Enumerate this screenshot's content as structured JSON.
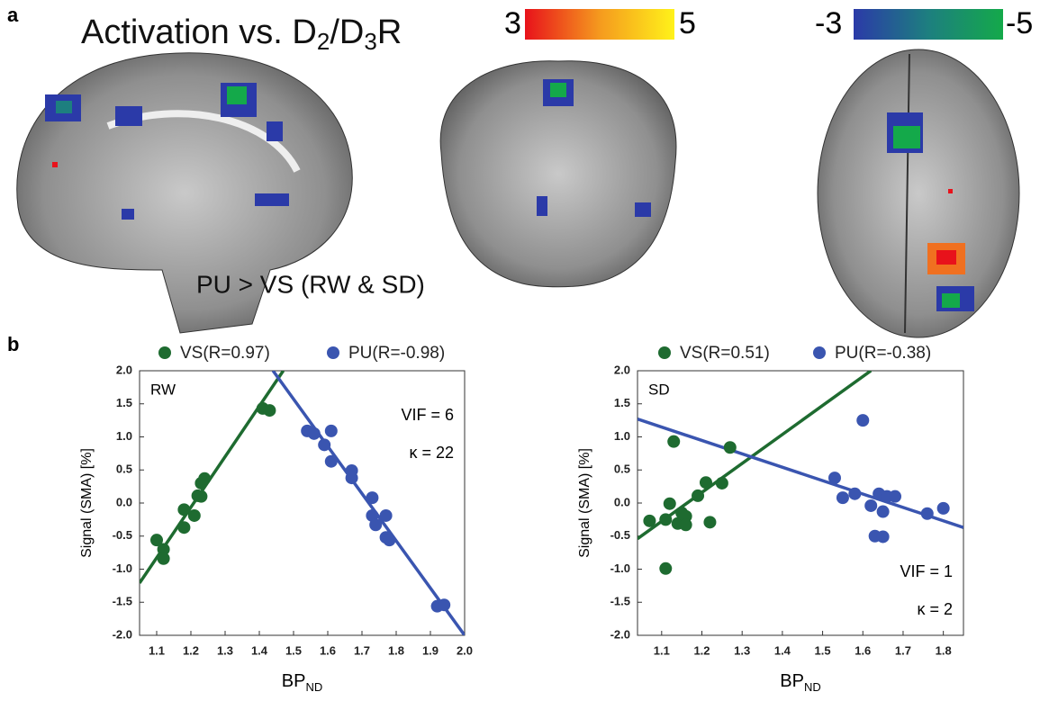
{
  "panel_a": {
    "label": "a",
    "title_parts": [
      "Activation vs. D",
      "2",
      "/D",
      "3",
      "R"
    ],
    "colorbar_pos": [
      "3",
      "5"
    ],
    "colorbar_neg": [
      "-3",
      "-5"
    ],
    "caption": "PU > VS (RW & SD)"
  },
  "panel_b": {
    "label": "b"
  },
  "chart_data": [
    {
      "type": "scatter",
      "inset_label": "RW",
      "annotations": [
        "VIF = 6",
        "κ = 22"
      ],
      "y_label": "Signal (SMA) [%]",
      "x_label": "BP",
      "x_label_sub": "ND",
      "xlim": [
        1.05,
        2.0
      ],
      "xticks": [
        1.1,
        1.2,
        1.3,
        1.4,
        1.5,
        1.6,
        1.7,
        1.8,
        1.9,
        {
          "value": 2.0,
          "label": "2.0"
        }
      ],
      "ylim": [
        -2.0,
        2.0
      ],
      "yticks": [
        {
          "value": -2.0,
          "label": "-2.0"
        },
        -1.5,
        {
          "value": -1.0,
          "label": "-1.0"
        },
        -0.5,
        {
          "value": 0,
          "label": "0.0"
        },
        0.5,
        {
          "value": 1.0,
          "label": "1.0"
        },
        1.5,
        {
          "value": 2.0,
          "label": "2.0"
        }
      ],
      "series": [
        {
          "name": "VS(R=0.97)",
          "color": "#1e6b30",
          "x": [
            1.1,
            1.12,
            1.12,
            1.18,
            1.18,
            1.21,
            1.22,
            1.23,
            1.23,
            1.24,
            1.41,
            1.43
          ],
          "values": [
            -0.56,
            -0.7,
            -0.84,
            -0.1,
            -0.37,
            -0.19,
            0.11,
            0.1,
            0.3,
            0.37,
            1.43,
            1.4
          ],
          "fit": {
            "x": [
              1.05,
              1.47
            ],
            "y": [
              -1.21,
              2.0
            ]
          }
        },
        {
          "name": "PU(R=-0.98)",
          "color": "#3a55b0",
          "x": [
            1.54,
            1.56,
            1.59,
            1.61,
            1.61,
            1.67,
            1.67,
            1.73,
            1.73,
            1.74,
            1.77,
            1.77,
            1.78,
            1.92,
            1.94
          ],
          "values": [
            1.09,
            1.05,
            0.88,
            1.09,
            0.63,
            0.49,
            0.38,
            0.08,
            -0.19,
            -0.33,
            -0.19,
            -0.52,
            -0.56,
            -1.56,
            -1.54
          ],
          "fit": {
            "x": [
              1.44,
              2.0
            ],
            "y": [
              2.0,
              -2.0
            ]
          }
        }
      ]
    },
    {
      "type": "scatter",
      "inset_label": "SD",
      "annotations": [
        "VIF = 1",
        "κ = 2"
      ],
      "y_label": "Signal (SMA) [%]",
      "x_label": "BP",
      "x_label_sub": "ND",
      "xlim": [
        1.04,
        1.85
      ],
      "xticks": [
        1.1,
        1.2,
        1.3,
        1.4,
        1.5,
        1.6,
        1.7,
        1.8
      ],
      "ylim": [
        -2.0,
        2.0
      ],
      "yticks": [
        {
          "value": -2.0,
          "label": "-2.0"
        },
        -1.5,
        {
          "value": -1.0,
          "label": "-1.0"
        },
        -0.5,
        {
          "value": 0,
          "label": "0.0"
        },
        0.5,
        {
          "value": 1.0,
          "label": "1.0"
        },
        1.5,
        {
          "value": 2.0,
          "label": "2.0"
        }
      ],
      "series": [
        {
          "name": "VS(R=0.51)",
          "color": "#1e6b30",
          "x": [
            1.07,
            1.11,
            1.12,
            1.13,
            1.14,
            1.15,
            1.16,
            1.16,
            1.19,
            1.21,
            1.22,
            1.25,
            1.27,
            1.11
          ],
          "values": [
            -0.27,
            -0.25,
            -0.01,
            0.93,
            -0.31,
            -0.15,
            -0.2,
            -0.33,
            0.11,
            0.31,
            -0.29,
            0.3,
            0.84,
            -0.99
          ],
          "fit": {
            "x": [
              1.04,
              1.62
            ],
            "y": [
              -0.54,
              2.0
            ]
          }
        },
        {
          "name": "PU(R=-0.38)",
          "color": "#3a55b0",
          "x": [
            1.53,
            1.55,
            1.58,
            1.6,
            1.62,
            1.63,
            1.64,
            1.65,
            1.65,
            1.66,
            1.68,
            1.76,
            1.8
          ],
          "values": [
            0.38,
            0.08,
            0.14,
            1.25,
            -0.04,
            -0.5,
            0.14,
            -0.13,
            -0.51,
            0.1,
            0.1,
            -0.16,
            -0.08
          ],
          "fit": {
            "x": [
              1.04,
              1.85
            ],
            "y": [
              1.27,
              -0.37
            ]
          }
        }
      ]
    }
  ]
}
